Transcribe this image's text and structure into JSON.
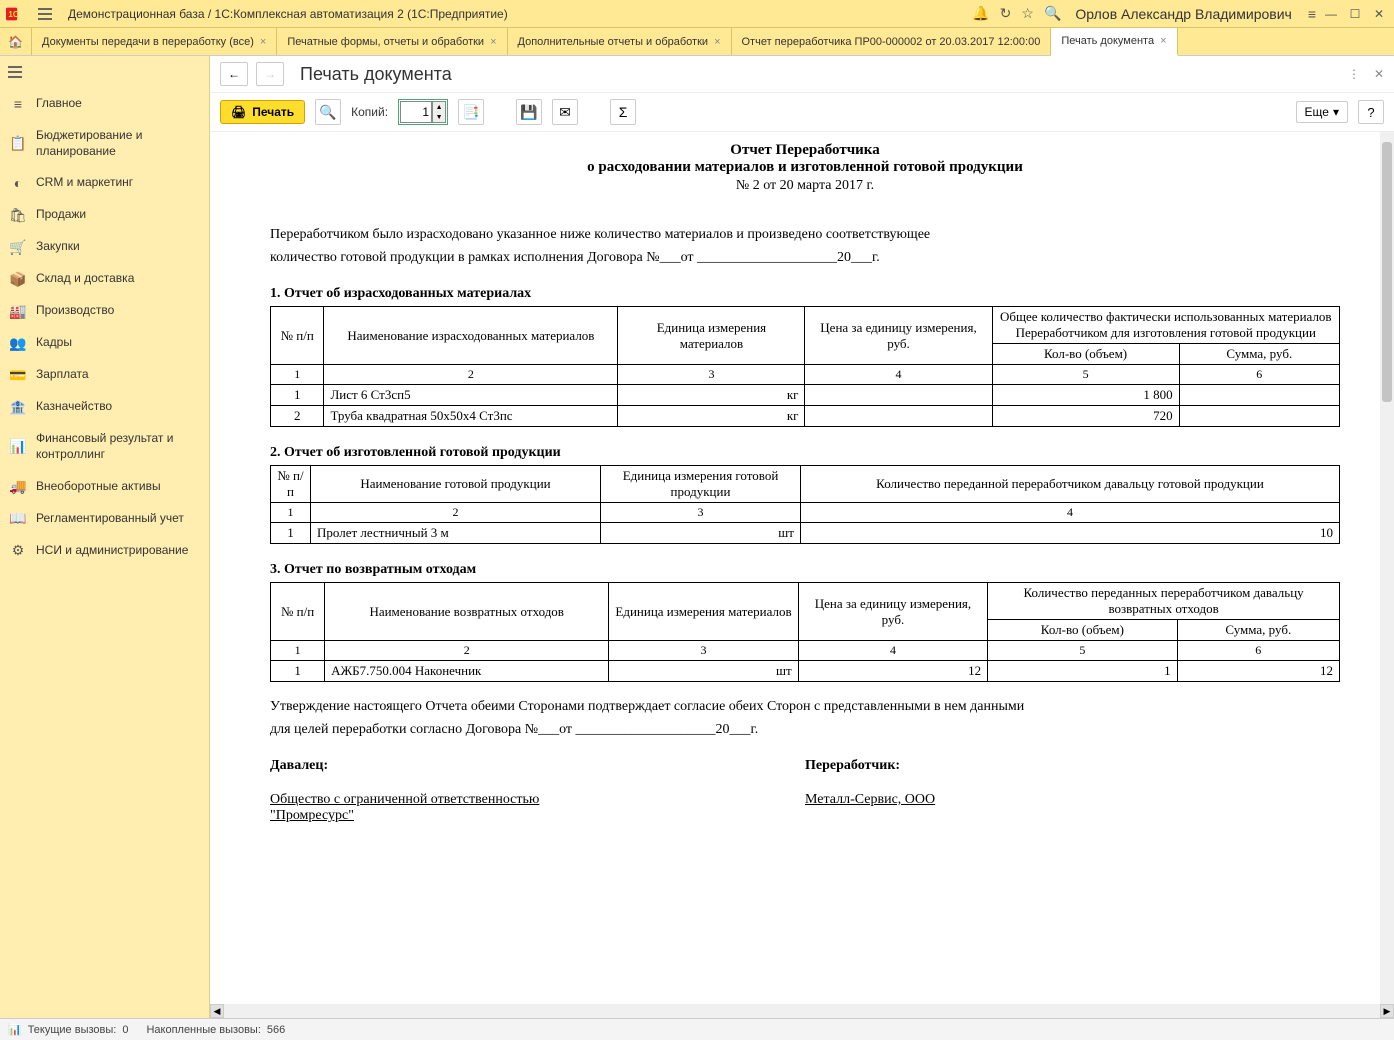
{
  "window": {
    "title": "Демонстрационная база / 1С:Комплексная автоматизация 2  (1С:Предприятие)",
    "username": "Орлов Александр Владимирович"
  },
  "tabs": [
    {
      "label": "Документы передачи в переработку (все)",
      "active": false,
      "closable": true
    },
    {
      "label": "Печатные формы, отчеты и обработки",
      "active": false,
      "closable": true
    },
    {
      "label": "Дополнительные отчеты и обработки",
      "active": false,
      "closable": true
    },
    {
      "label": "Отчет переработчика ПР00-000002 от 20.03.2017 12:00:00",
      "active": false,
      "closable": false
    },
    {
      "label": "Печать документа",
      "active": true,
      "closable": true
    }
  ],
  "sidebar": [
    {
      "icon": "≡",
      "label": "Главное"
    },
    {
      "icon": "📋",
      "label": "Бюджетирование и планирование"
    },
    {
      "icon": "◐",
      "label": "CRM и маркетинг"
    },
    {
      "icon": "🛍",
      "label": "Продажи"
    },
    {
      "icon": "🛒",
      "label": "Закупки"
    },
    {
      "icon": "📦",
      "label": "Склад и доставка"
    },
    {
      "icon": "🏭",
      "label": "Производство"
    },
    {
      "icon": "👥",
      "label": "Кадры"
    },
    {
      "icon": "💳",
      "label": "Зарплата"
    },
    {
      "icon": "🏦",
      "label": "Казначейство"
    },
    {
      "icon": "📊",
      "label": "Финансовый результат и контроллинг"
    },
    {
      "icon": "🚚",
      "label": "Внеоборотные активы"
    },
    {
      "icon": "📖",
      "label": "Регламентированный учет"
    },
    {
      "icon": "⚙",
      "label": "НСИ и администрирование"
    }
  ],
  "page": {
    "title": "Печать документа",
    "print_label": "Печать",
    "copies_label": "Копий:",
    "copies_value": "1",
    "more_label": "Еще"
  },
  "doc": {
    "title1": "Отчет Переработчика",
    "title2": "о расходовании материалов и изготовленной готовой продукции",
    "number": "№ 2 от 20 марта 2017 г.",
    "intro1": "Переработчиком было израсходовано указанное ниже количество материалов и произведено соответствующее",
    "intro2": "количество готовой продукции в рамках исполнения Договора №___от ____________________20___г.",
    "section1": "1. Отчет об израсходованных материалах",
    "t1": {
      "h_num": "№ п/п",
      "h_name": "Наименование израсходованных материалов",
      "h_unit": "Единица измерения материалов",
      "h_price": "Цена за единицу измерения, руб.",
      "h_total": "Общее количество фактически использованных материалов Переработчиком для изготовления готовой продукции",
      "h_qty": "Кол-во (объем)",
      "h_sum": "Сумма, руб.",
      "nums": [
        "1",
        "2",
        "3",
        "4",
        "5",
        "6"
      ],
      "rows": [
        {
          "n": "1",
          "name": "Лист 6 Ст3сп5",
          "unit": "кг",
          "price": "",
          "qty": "1 800",
          "sum": ""
        },
        {
          "n": "2",
          "name": "Труба квадратная 50х50х4 Ст3пс",
          "unit": "кг",
          "price": "",
          "qty": "720",
          "sum": ""
        }
      ]
    },
    "section2": "2. Отчет об изготовленной  готовой продукции",
    "t2": {
      "h_num": "№ п/п",
      "h_name": "Наименование готовой продукции",
      "h_unit": "Единица измерения готовой продукции",
      "h_qty": "Количество переданной переработчиком давальцу готовой продукции",
      "nums": [
        "1",
        "2",
        "3",
        "4"
      ],
      "rows": [
        {
          "n": "1",
          "name": "Пролет лестничный 3 м",
          "unit": "шт",
          "qty": "10"
        }
      ]
    },
    "section3": "3. Отчет по возвратным отходам",
    "t3": {
      "h_num": "№ п/п",
      "h_name": "Наименование возвратных отходов",
      "h_unit": "Единица измерения материалов",
      "h_price": "Цена за единицу измерения, руб.",
      "h_total": "Количество переданных переработчиком давальцу возвратных отходов",
      "h_qty": "Кол-во (объем)",
      "h_sum": "Сумма, руб.",
      "nums": [
        "1",
        "2",
        "3",
        "4",
        "5",
        "6"
      ],
      "rows": [
        {
          "n": "1",
          "name": "АЖБ7.750.004 Наконечник",
          "unit": "шт",
          "price": "12",
          "qty": "1",
          "sum": "12"
        }
      ]
    },
    "footer1": "Утверждение настоящего Отчета обеими Сторонами подтверждает согласие обеих  Сторон с представленными в нем данными",
    "footer2": "для целей переработки согласно Договора №___от ____________________20___г.",
    "sig_left_label": "Давалец:",
    "sig_right_label": "Переработчик:",
    "sig_left_name1": "Общество с ограниченной ответственностью ",
    "sig_left_name2": "\"Промресурс\"",
    "sig_right_name": "Металл-Сервис, ООО"
  },
  "status": {
    "calls_label": "Текущие вызовы:",
    "calls_value": "0",
    "accum_label": "Накопленные вызовы:",
    "accum_value": "566"
  },
  "colors": {
    "titlebar": "#ffe995",
    "sidebar": "#ffeeaf",
    "print_btn": "#ffdd2d"
  }
}
